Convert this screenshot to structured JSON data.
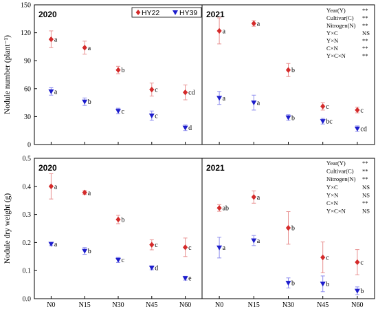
{
  "colors": {
    "HY22": "#d42a2a",
    "HY39": "#1d1dcc",
    "err_HY22": "#e89090",
    "err_HY39": "#8c8cee"
  },
  "chart_data": [
    {
      "type": "scatter",
      "panel": "top-left",
      "year": "2020",
      "categories": [
        "N0",
        "N15",
        "N30",
        "N45",
        "N60"
      ],
      "ylabel": "Nodule number (plant⁻¹)",
      "ylim": [
        0,
        150
      ],
      "yticks": [
        0,
        30,
        60,
        90,
        120,
        150
      ],
      "legend": [
        {
          "name": "HY22",
          "marker": "diamond"
        },
        {
          "name": "HY39",
          "marker": "triangle-down"
        }
      ],
      "legend_position": "top",
      "series": [
        {
          "name": "HY22",
          "values": [
            113,
            104,
            80,
            59,
            56
          ],
          "errors": [
            9,
            7,
            4,
            7,
            8
          ],
          "labels": [
            "a",
            "a",
            "b",
            "c",
            "cd"
          ]
        },
        {
          "name": "HY39",
          "values": [
            57,
            46,
            36,
            31,
            18
          ],
          "errors": [
            4,
            4,
            3,
            5,
            3
          ],
          "labels": [
            "a",
            "b",
            "c",
            "c",
            "d"
          ]
        }
      ],
      "stats": []
    },
    {
      "type": "scatter",
      "panel": "top-right",
      "year": "2021",
      "categories": [
        "N0",
        "N15",
        "N30",
        "N45",
        "N60"
      ],
      "ylim": [
        0,
        150
      ],
      "series": [
        {
          "name": "HY22",
          "values": [
            122,
            130,
            80,
            41,
            37
          ],
          "errors": [
            14,
            3,
            7,
            4,
            3
          ],
          "labels": [
            "a",
            "a",
            "b",
            "c",
            "c"
          ]
        },
        {
          "name": "HY39",
          "values": [
            50,
            45,
            29,
            25,
            17
          ],
          "errors": [
            7,
            8,
            3,
            3,
            3
          ],
          "labels": [
            "a",
            "a",
            "b",
            "bc",
            "cd"
          ]
        }
      ],
      "stats": [
        {
          "term": "Year(Y)",
          "sig": "**"
        },
        {
          "term": "Cultivar(C)",
          "sig": "**"
        },
        {
          "term": "Nitrogen(N)",
          "sig": "**"
        },
        {
          "term": "Y×C",
          "sig": "NS"
        },
        {
          "term": "Y×N",
          "sig": "**"
        },
        {
          "term": "C×N",
          "sig": "**"
        },
        {
          "term": "Y×C×N",
          "sig": "**"
        }
      ]
    },
    {
      "type": "scatter",
      "panel": "bottom-left",
      "year": "2020",
      "categories": [
        "N0",
        "N15",
        "N30",
        "N45",
        "N60"
      ],
      "ylabel": "Nodule dry weight (g)",
      "ylim": [
        0,
        0.5
      ],
      "yticks": [
        "0.0",
        "0.1",
        "0.2",
        "0.3",
        "0.4",
        "0.5"
      ],
      "series": [
        {
          "name": "HY22",
          "values": [
            0.4,
            0.378,
            0.282,
            0.192,
            0.183
          ],
          "errors": [
            0.045,
            0.007,
            0.015,
            0.018,
            0.033
          ],
          "labels": [
            "a",
            "a",
            "b",
            "c",
            "c"
          ]
        },
        {
          "name": "HY39",
          "values": [
            0.195,
            0.17,
            0.138,
            0.11,
            0.073
          ],
          "errors": [
            0.006,
            0.012,
            0.009,
            0.007,
            0.007
          ],
          "labels": [
            "a",
            "b",
            "c",
            "d",
            "e"
          ]
        }
      ],
      "stats": []
    },
    {
      "type": "scatter",
      "panel": "bottom-right",
      "year": "2021",
      "categories": [
        "N0",
        "N15",
        "N30",
        "N45",
        "N60"
      ],
      "ylim": [
        0,
        0.5
      ],
      "series": [
        {
          "name": "HY22",
          "values": [
            0.323,
            0.362,
            0.252,
            0.147,
            0.13
          ],
          "errors": [
            0.012,
            0.022,
            0.058,
            0.055,
            0.045
          ],
          "labels": [
            "ab",
            "a",
            "b",
            "c",
            "c"
          ]
        },
        {
          "name": "HY39",
          "values": [
            0.182,
            0.207,
            0.056,
            0.053,
            0.028
          ],
          "errors": [
            0.037,
            0.018,
            0.018,
            0.028,
            0.014
          ],
          "labels": [
            "a",
            "a",
            "b",
            "b",
            "b"
          ]
        }
      ],
      "stats": [
        {
          "term": "Year(Y)",
          "sig": "**"
        },
        {
          "term": "Cultivar(C)",
          "sig": "**"
        },
        {
          "term": "Nitrogen(N)",
          "sig": "**"
        },
        {
          "term": "Y×C",
          "sig": "NS"
        },
        {
          "term": "Y×N",
          "sig": "NS"
        },
        {
          "term": "C×N",
          "sig": "**"
        },
        {
          "term": "Y×C×N",
          "sig": "NS"
        }
      ]
    }
  ]
}
